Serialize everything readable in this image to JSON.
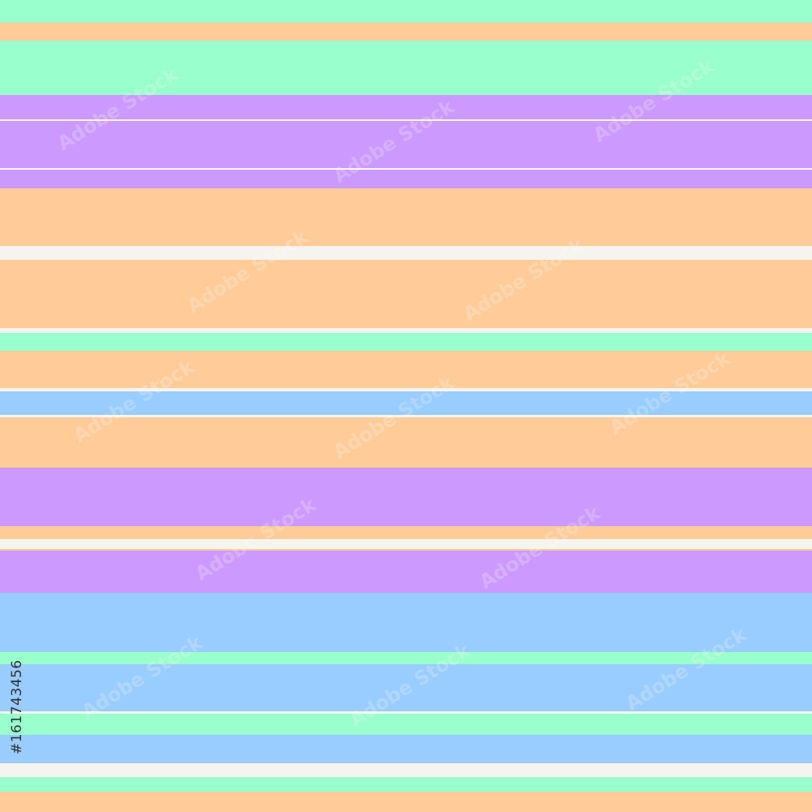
{
  "image_id": "#161743456",
  "watermark": "Adobe Stock"
}
